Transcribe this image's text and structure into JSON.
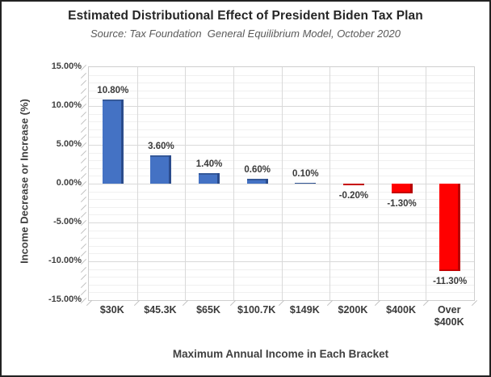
{
  "chart_data": {
    "type": "bar",
    "title": "Estimated Distributional Effect of President Biden Tax Plan",
    "subtitle": "Source: Tax Foundation  General Equilibrium Model, October 2020",
    "xlabel": "Maximum Annual Income in Each Bracket",
    "ylabel": "Income Decrease or Increase (%)",
    "categories": [
      "$30K",
      "$45.3K",
      "$65K",
      "$100.7K",
      "$149K",
      "$200K",
      "$400K",
      "Over $400K"
    ],
    "values": [
      10.8,
      3.6,
      1.4,
      0.6,
      0.1,
      -0.2,
      -1.3,
      -11.3
    ],
    "value_labels": [
      "10.80%",
      "3.60%",
      "1.40%",
      "0.60%",
      "0.10%",
      "-0.20%",
      "-1.30%",
      "-11.30%"
    ],
    "ytick_labels": [
      "15.00%",
      "10.00%",
      "5.00%",
      "0.00%",
      "-5.00%",
      "-10.00%",
      "-15.00%"
    ],
    "ytick_values": [
      15,
      10,
      5,
      0,
      -5,
      -10,
      -15
    ],
    "ylim": [
      -15,
      15
    ],
    "minor_step": 1,
    "major_step": 5,
    "grid": true,
    "legend": false,
    "colors": {
      "positive_fill": "#4472C4",
      "positive_edge": "#2B4C8C",
      "negative_fill": "#FF0000",
      "negative_edge": "#B80000"
    }
  }
}
